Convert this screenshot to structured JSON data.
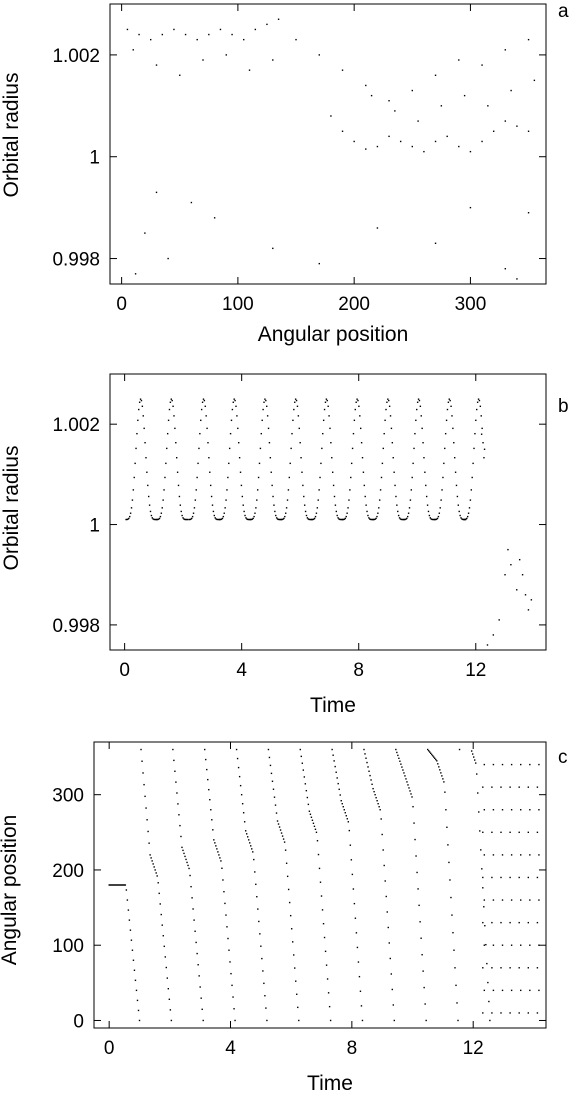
{
  "chart_data": [
    {
      "panel": "a",
      "type": "scatter",
      "xlabel": "Angular position",
      "ylabel": "Orbital radius",
      "xlim": [
        -10,
        365
      ],
      "ylim": [
        0.9975,
        1.003
      ],
      "xticks": [
        0,
        100,
        200,
        300
      ],
      "xtick_labels": [
        "0",
        "100",
        "200",
        "300"
      ],
      "yticks": [
        0.998,
        1,
        1.002
      ],
      "ytick_labels": [
        "0.998",
        "1",
        "1.002"
      ],
      "grid": false,
      "points": [
        [
          5,
          1.0025
        ],
        [
          15,
          1.0024
        ],
        [
          25,
          1.0023
        ],
        [
          35,
          1.0024
        ],
        [
          45,
          1.0025
        ],
        [
          55,
          1.0024
        ],
        [
          65,
          1.0023
        ],
        [
          75,
          1.0024
        ],
        [
          85,
          1.0025
        ],
        [
          95,
          1.0024
        ],
        [
          105,
          1.0023
        ],
        [
          115,
          1.0025
        ],
        [
          125,
          1.0026
        ],
        [
          135,
          1.0027
        ],
        [
          10,
          1.0021
        ],
        [
          30,
          1.0018
        ],
        [
          50,
          1.0016
        ],
        [
          70,
          1.0019
        ],
        [
          90,
          1.002
        ],
        [
          110,
          1.0017
        ],
        [
          130,
          1.0019
        ],
        [
          150,
          1.0023
        ],
        [
          170,
          1.002
        ],
        [
          190,
          1.0017
        ],
        [
          210,
          1.0014
        ],
        [
          230,
          1.0011
        ],
        [
          250,
          1.0013
        ],
        [
          270,
          1.0016
        ],
        [
          290,
          1.0019
        ],
        [
          310,
          1.0018
        ],
        [
          330,
          1.0021
        ],
        [
          350,
          1.0023
        ],
        [
          180,
          1.0008
        ],
        [
          190,
          1.0005
        ],
        [
          200,
          1.0003
        ],
        [
          210,
          1.00015
        ],
        [
          220,
          1.0002
        ],
        [
          230,
          1.0004
        ],
        [
          240,
          1.0003
        ],
        [
          250,
          1.0002
        ],
        [
          260,
          1.0001
        ],
        [
          270,
          1.0003
        ],
        [
          280,
          1.0004
        ],
        [
          290,
          1.0002
        ],
        [
          300,
          1.0001
        ],
        [
          310,
          1.0003
        ],
        [
          320,
          1.0005
        ],
        [
          330,
          1.0007
        ],
        [
          340,
          1.0006
        ],
        [
          350,
          1.0005
        ],
        [
          215,
          1.0012
        ],
        [
          235,
          1.0009
        ],
        [
          255,
          1.0007
        ],
        [
          275,
          1.001
        ],
        [
          295,
          1.0012
        ],
        [
          315,
          1.001
        ],
        [
          335,
          1.0013
        ],
        [
          355,
          1.0015
        ],
        [
          30,
          0.9993
        ],
        [
          60,
          0.9991
        ],
        [
          20,
          0.9985
        ],
        [
          40,
          0.998
        ],
        [
          80,
          0.9988
        ],
        [
          130,
          0.9982
        ],
        [
          170,
          0.9979
        ],
        [
          220,
          0.9986
        ],
        [
          270,
          0.9983
        ],
        [
          300,
          0.999
        ],
        [
          330,
          0.9978
        ],
        [
          350,
          0.9989
        ],
        [
          12,
          0.9977
        ],
        [
          340,
          0.9976
        ]
      ]
    },
    {
      "panel": "b",
      "type": "scatter",
      "xlabel": "Time",
      "ylabel": "Orbital radius",
      "xlim": [
        -0.5,
        14.4
      ],
      "ylim": [
        0.9975,
        1.003
      ],
      "xticks": [
        0,
        4,
        8,
        12
      ],
      "xtick_labels": [
        "0",
        "4",
        "8",
        "12"
      ],
      "yticks": [
        0.998,
        1,
        1.002
      ],
      "ytick_labels": [
        "0.998",
        "1",
        "1.002"
      ],
      "grid": false,
      "peak_times": [
        0.55,
        1.6,
        2.7,
        3.75,
        4.8,
        5.85,
        6.9,
        7.95,
        9.0,
        10.05,
        11.1,
        12.1
      ],
      "r_peak": 1.0025,
      "r_trough": 1.0001,
      "period": 1.05,
      "late_points": [
        [
          12.6,
          0.9978
        ],
        [
          12.8,
          0.9981
        ],
        [
          13.0,
          0.999
        ],
        [
          13.1,
          0.9995
        ],
        [
          13.2,
          0.9992
        ],
        [
          13.4,
          0.9987
        ],
        [
          13.5,
          0.9993
        ],
        [
          13.6,
          0.999
        ],
        [
          13.7,
          0.9986
        ],
        [
          13.8,
          0.9983
        ],
        [
          13.9,
          0.9985
        ],
        [
          12.4,
          0.9976
        ],
        [
          12.2,
          1.0018
        ],
        [
          12.3,
          1.0015
        ]
      ]
    },
    {
      "panel": "c",
      "type": "scatter",
      "xlabel": "Time",
      "ylabel": "Angular position",
      "xlim": [
        -0.5,
        14.4
      ],
      "ylim": [
        -10,
        370
      ],
      "xticks": [
        0,
        4,
        8,
        12
      ],
      "xtick_labels": [
        "0",
        "4",
        "8",
        "12"
      ],
      "yticks": [
        0,
        100,
        200,
        300
      ],
      "ytick_labels": [
        "0",
        "100",
        "200",
        "300"
      ],
      "grid": false,
      "branch_starts": [
        0.0,
        1.05,
        2.1,
        3.15,
        4.2,
        5.25,
        6.3,
        7.35,
        8.4,
        9.45,
        10.5,
        11.55
      ],
      "plateau_angles": [
        180,
        190,
        200,
        210,
        222,
        235,
        248,
        262,
        278,
        295,
        315,
        340
      ],
      "late_columns": [
        12.3,
        12.6,
        12.9,
        13.2,
        13.5,
        13.8,
        14.1
      ]
    }
  ],
  "panels": {
    "a": {
      "letter": "a"
    },
    "b": {
      "letter": "b"
    },
    "c": {
      "letter": "c"
    }
  }
}
